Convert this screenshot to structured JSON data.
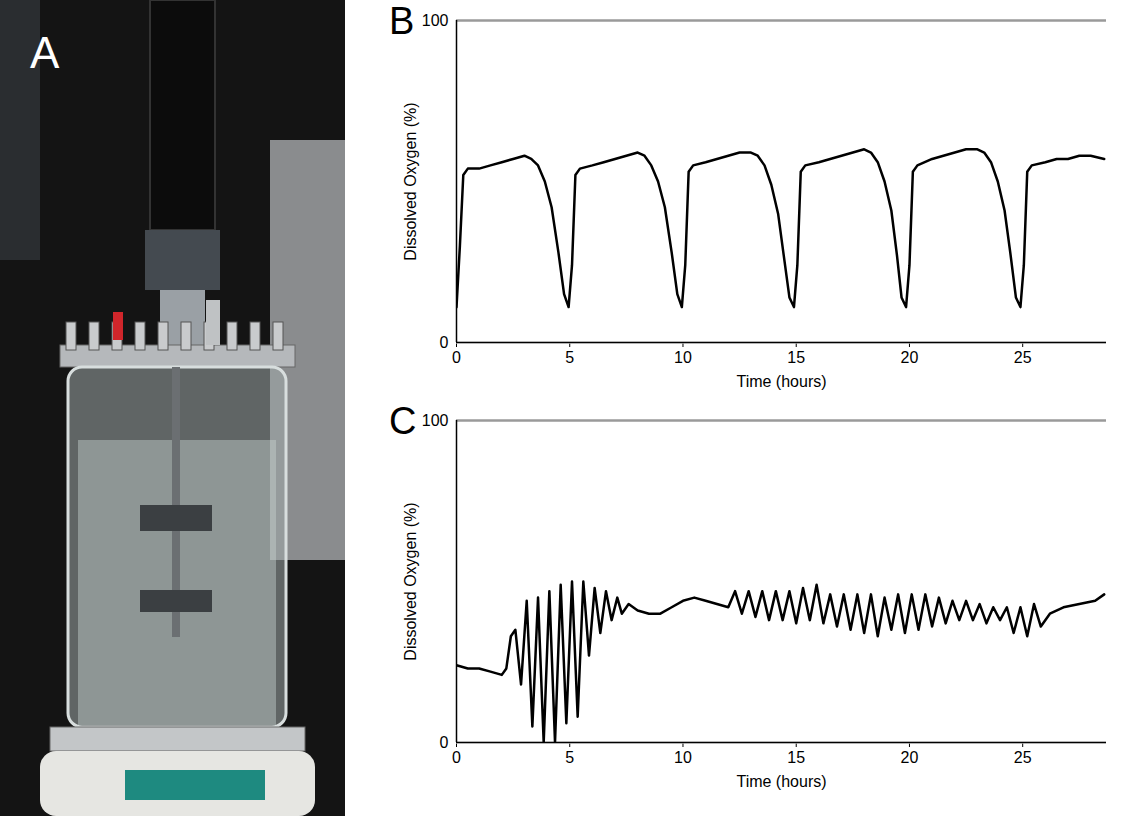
{
  "photo": {
    "panel": "A"
  },
  "chart_data": [
    {
      "type": "line",
      "panel": "B",
      "color": "#000000",
      "xlabel": "Time (hours)",
      "ylabel": "Dissolved Oxygen (%)",
      "xlim": [
        0,
        28.7
      ],
      "ylim": [
        0,
        100
      ],
      "xticks": [
        0,
        5,
        10,
        15,
        20,
        25
      ],
      "yticks": [
        0,
        100
      ],
      "grid": true,
      "x": [
        0,
        0.15,
        0.3,
        0.5,
        1,
        1.5,
        2,
        2.5,
        3,
        3.3,
        3.6,
        3.9,
        4.2,
        4.5,
        4.75,
        4.95,
        5.1,
        5.25,
        5.45,
        6,
        6.5,
        7,
        7.5,
        8,
        8.3,
        8.6,
        8.9,
        9.2,
        9.5,
        9.75,
        9.95,
        10.1,
        10.25,
        10.45,
        11,
        11.5,
        12,
        12.5,
        13,
        13.3,
        13.6,
        13.9,
        14.2,
        14.45,
        14.7,
        14.9,
        15.05,
        15.2,
        15.4,
        16,
        16.5,
        17,
        17.5,
        18,
        18.3,
        18.6,
        18.9,
        19.2,
        19.45,
        19.65,
        19.85,
        20.0,
        20.15,
        20.35,
        21,
        21.5,
        22,
        22.5,
        23,
        23.3,
        23.6,
        23.9,
        24.2,
        24.45,
        24.7,
        24.9,
        25.05,
        25.2,
        25.4,
        26,
        26.5,
        27,
        27.5,
        28,
        28.6
      ],
      "values": [
        11,
        30,
        52,
        54,
        54,
        55,
        56,
        57,
        58,
        57,
        55,
        50,
        42,
        28,
        15,
        11,
        24,
        52,
        54,
        55,
        56,
        57,
        58,
        59,
        58,
        55,
        50,
        42,
        28,
        15,
        11,
        24,
        53,
        55,
        56,
        57,
        58,
        59,
        59,
        58,
        55,
        49,
        40,
        27,
        14,
        11,
        24,
        53,
        55,
        56,
        57,
        58,
        59,
        60,
        59,
        56,
        50,
        41,
        27,
        14,
        11,
        24,
        53,
        55,
        57,
        58,
        59,
        60,
        60,
        59,
        56,
        50,
        41,
        28,
        14,
        11,
        24,
        53,
        55,
        56,
        57,
        57,
        58,
        58,
        57
      ]
    },
    {
      "type": "line",
      "panel": "C",
      "color": "#000000",
      "xlabel": "Time (hours)",
      "ylabel": "Dissolved Oxygen (%)",
      "xlim": [
        0,
        28.7
      ],
      "ylim": [
        0,
        100
      ],
      "xticks": [
        0,
        5,
        10,
        15,
        20,
        25
      ],
      "yticks": [
        0,
        100
      ],
      "grid": true,
      "x": [
        0,
        0.5,
        1,
        1.5,
        2,
        2.2,
        2.4,
        2.6,
        2.85,
        3.1,
        3.35,
        3.6,
        3.85,
        4.1,
        4.35,
        4.6,
        4.85,
        5.1,
        5.35,
        5.6,
        5.85,
        6.1,
        6.35,
        6.6,
        6.85,
        7.1,
        7.3,
        7.6,
        8,
        8.5,
        9,
        9.5,
        10,
        10.5,
        11,
        11.5,
        12,
        12.3,
        12.6,
        12.9,
        13.2,
        13.5,
        13.8,
        14.1,
        14.4,
        14.7,
        15.0,
        15.3,
        15.6,
        15.9,
        16.2,
        16.5,
        16.8,
        17.1,
        17.4,
        17.7,
        18.0,
        18.3,
        18.6,
        18.9,
        19.2,
        19.5,
        19.8,
        20.1,
        20.4,
        20.7,
        21.0,
        21.3,
        21.6,
        21.9,
        22.2,
        22.5,
        22.8,
        23.1,
        23.4,
        23.7,
        24.0,
        24.3,
        24.6,
        24.9,
        25.2,
        25.5,
        25.8,
        26.2,
        26.8,
        27.5,
        28.2,
        28.6
      ],
      "values": [
        24,
        23,
        23,
        22,
        21,
        23,
        33,
        35,
        18,
        44,
        5,
        45,
        0,
        47,
        0,
        49,
        6,
        50,
        8,
        50,
        27,
        48,
        34,
        47,
        38,
        45,
        40,
        43,
        41,
        40,
        40,
        42,
        44,
        45,
        44,
        43,
        42,
        47,
        40,
        47,
        39,
        47,
        38,
        47,
        38,
        47,
        37,
        48,
        38,
        49,
        37,
        46,
        36,
        46,
        35,
        46,
        34,
        46,
        33,
        45,
        35,
        46,
        34,
        46,
        35,
        46,
        36,
        45,
        37,
        44,
        38,
        44,
        38,
        43,
        37,
        42,
        38,
        42,
        34,
        42,
        33,
        43,
        36,
        40,
        42,
        43,
        44,
        46
      ]
    }
  ]
}
